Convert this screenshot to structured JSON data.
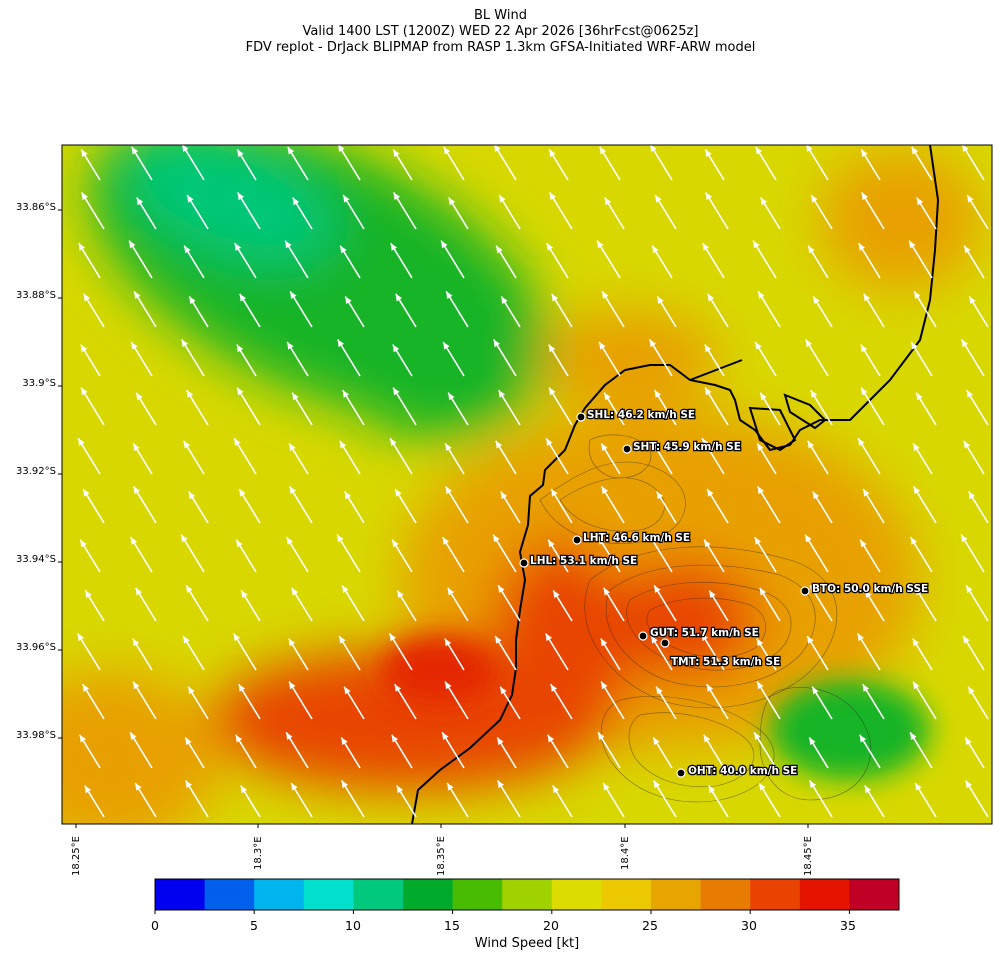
{
  "title": {
    "line1": "BL Wind",
    "line2": "Valid 1400 LST (1200Z) WED 22 Apr 2026 [36hrFcst@0625z]",
    "line3": "FDV replot - DrJack BLIPMAP from RASP 1.3km GFSA-Initiated WRF-ARW model"
  },
  "axes": {
    "y_ticks": [
      "33.86°S",
      "33.88°S",
      "33.9°S",
      "33.92°S",
      "33.94°S",
      "33.96°S",
      "33.98°S"
    ],
    "x_ticks": [
      "18.25°E",
      "18.3°E",
      "18.35°E",
      "18.4°E",
      "18.45°E"
    ]
  },
  "stations": [
    {
      "label": "SHL: 46.2 km/h SE"
    },
    {
      "label": "SHT: 45.9 km/h SE"
    },
    {
      "label": "LHT: 46.6 km/h SE"
    },
    {
      "label": "LHL: 53.1 km/h SE"
    },
    {
      "label": "BTO: 50.0 km/h SSE"
    },
    {
      "label": "GUT: 51.7 km/h SE"
    },
    {
      "label": "TMT: 51.3 km/h SE"
    },
    {
      "label": "OHT: 40.0 km/h SE"
    }
  ],
  "colorbar": {
    "label": "Wind Speed [kt]",
    "ticks": [
      "0",
      "5",
      "10",
      "15",
      "20",
      "25",
      "30",
      "35"
    ],
    "colors": [
      "#0000ee",
      "#0060ee",
      "#00b4ee",
      "#00e0cc",
      "#00c87c",
      "#00aa2a",
      "#48bc00",
      "#a0d200",
      "#dcdc00",
      "#ecc800",
      "#e8a400",
      "#e87c00",
      "#e84400",
      "#e41400",
      "#c00024"
    ]
  },
  "field": {
    "background": "#d8d800",
    "green_zone": "#14b428",
    "teal_zone": "#00c878",
    "orange_zone": "#e8a000",
    "red_zone": "#e84400",
    "deep_red_zone": "#e42800"
  }
}
